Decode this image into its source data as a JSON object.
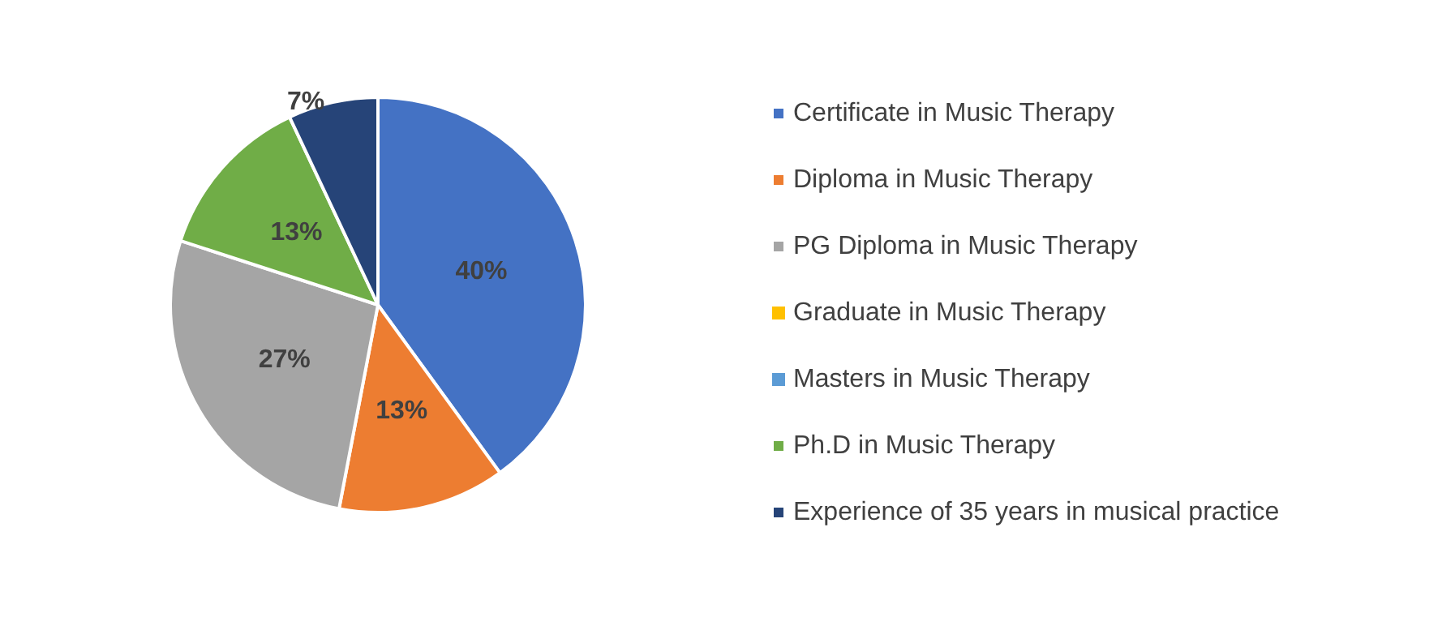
{
  "chart_data": {
    "type": "pie",
    "categories": [
      "Certificate in Music Therapy",
      "Diploma in Music Therapy",
      "PG Diploma in Music Therapy",
      "Graduate in Music Therapy",
      "Masters in Music Therapy",
      "Ph.D in Music Therapy",
      "Experience of 35 years in musical practice"
    ],
    "values": [
      40,
      13,
      27,
      0,
      0,
      13,
      7
    ],
    "colors": [
      "#4472c4",
      "#ed7d31",
      "#a5a5a5",
      "#ffc000",
      "#5b9bd5",
      "#70ad47",
      "#264478"
    ],
    "value_labels": [
      "40%",
      "13%",
      "27%",
      null,
      null,
      "13%",
      "7%"
    ],
    "legend": "right"
  }
}
